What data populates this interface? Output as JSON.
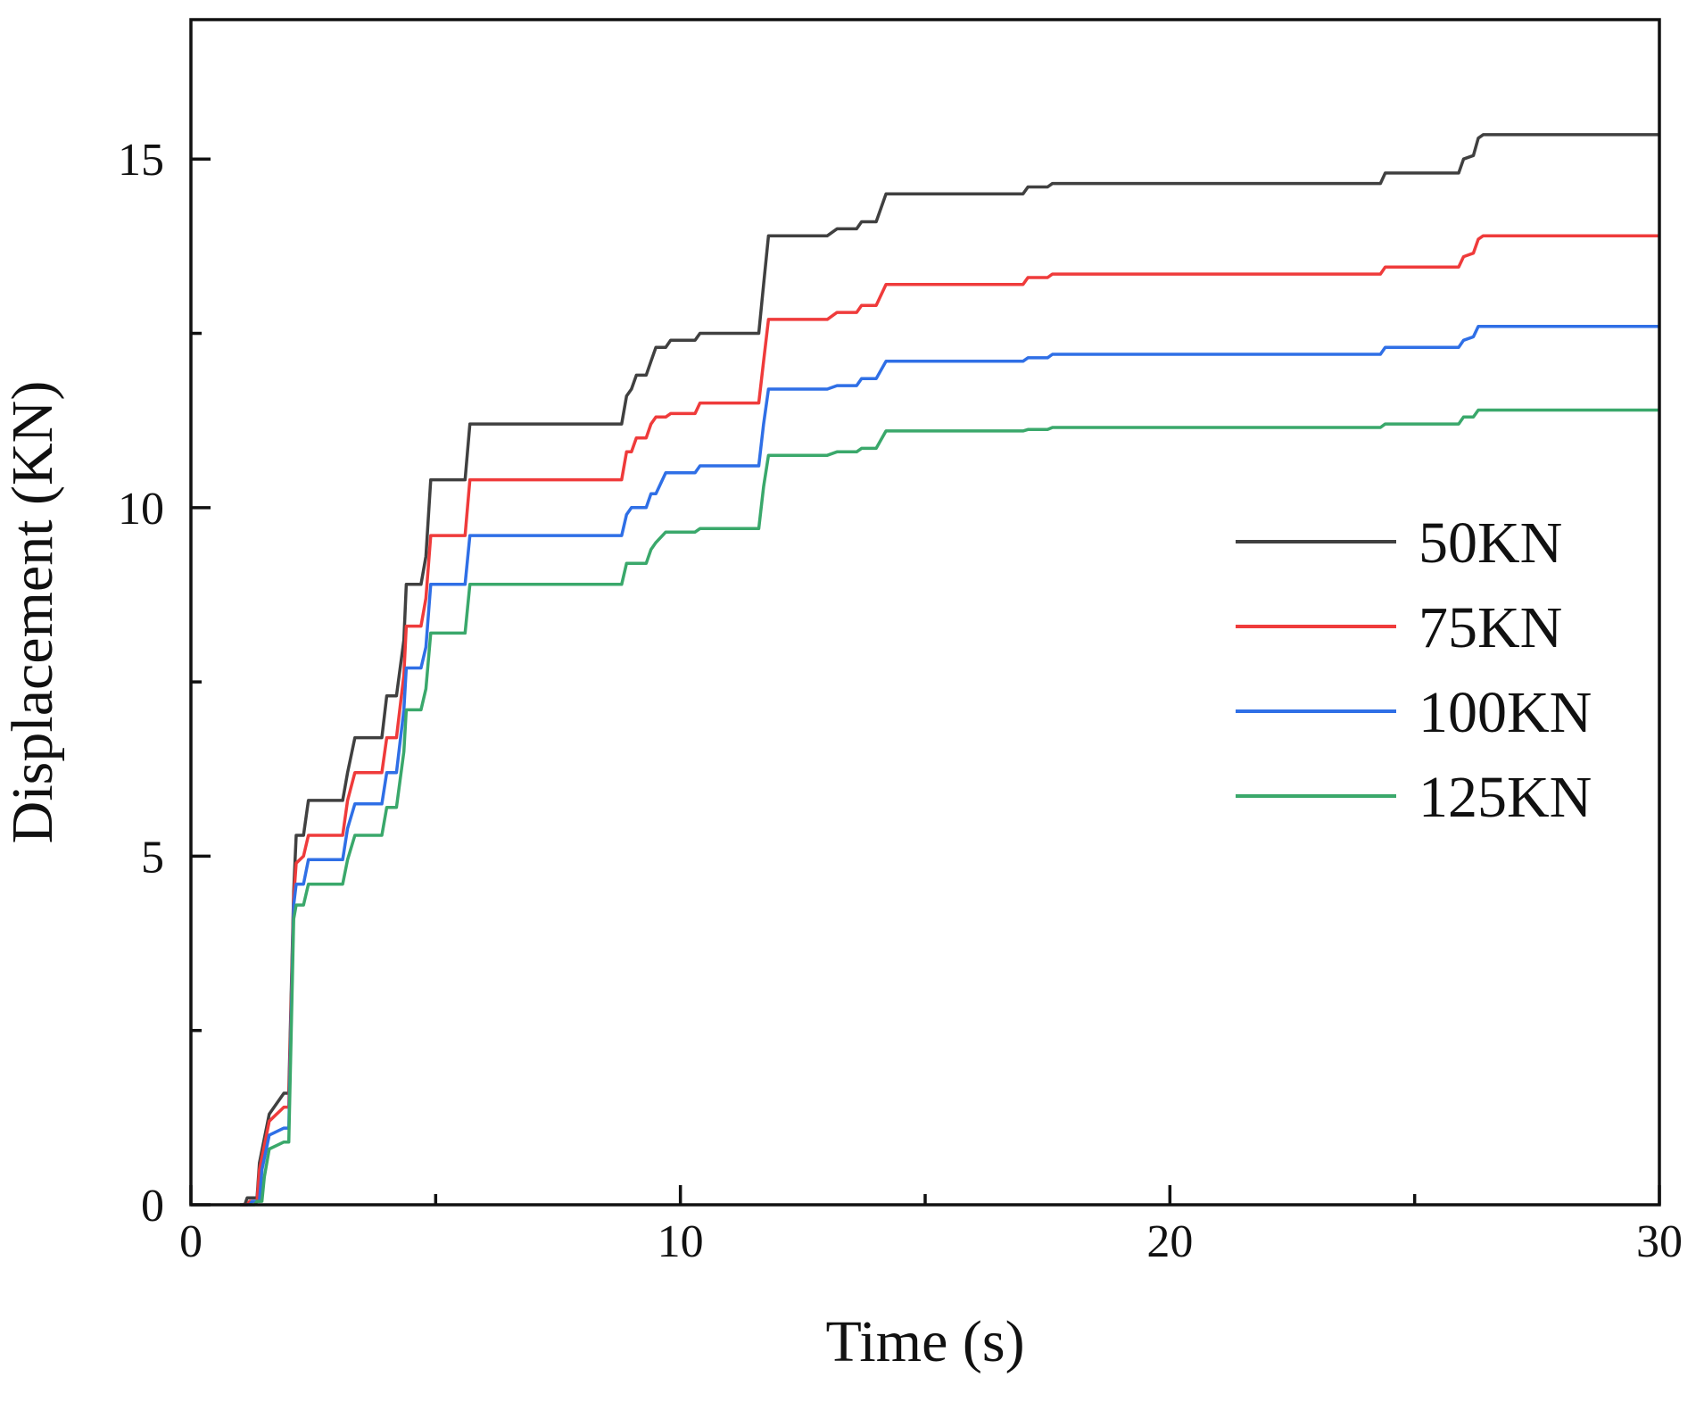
{
  "chart_data": {
    "type": "line",
    "title": "",
    "xlabel": "Time (s)",
    "ylabel": "Displacement (KN)",
    "xlim": [
      0,
      30
    ],
    "ylim": [
      0,
      17
    ],
    "xticks": [
      0,
      10,
      20,
      30
    ],
    "yticks": [
      0,
      5,
      10,
      15
    ],
    "x_minor_ticks": [
      5,
      15,
      25
    ],
    "y_minor_ticks": [
      2.5,
      7.5,
      12.5
    ],
    "grid": false,
    "legend_position": "right",
    "series": [
      {
        "name": "50KN",
        "color": "#404040",
        "points": [
          [
            1.0,
            0
          ],
          [
            1.1,
            0
          ],
          [
            1.15,
            0.1
          ],
          [
            1.35,
            0.1
          ],
          [
            1.4,
            0.6
          ],
          [
            1.6,
            1.3
          ],
          [
            1.9,
            1.6
          ],
          [
            2.0,
            1.6
          ],
          [
            2.1,
            4.5
          ],
          [
            2.15,
            5.3
          ],
          [
            2.3,
            5.3
          ],
          [
            2.4,
            5.8
          ],
          [
            3.1,
            5.8
          ],
          [
            3.2,
            6.2
          ],
          [
            3.35,
            6.7
          ],
          [
            3.9,
            6.7
          ],
          [
            4.0,
            7.3
          ],
          [
            4.2,
            7.3
          ],
          [
            4.35,
            8.1
          ],
          [
            4.4,
            8.9
          ],
          [
            4.7,
            8.9
          ],
          [
            4.8,
            9.3
          ],
          [
            4.9,
            10.4
          ],
          [
            5.6,
            10.4
          ],
          [
            5.7,
            11.2
          ],
          [
            8.8,
            11.2
          ],
          [
            8.9,
            11.6
          ],
          [
            9.0,
            11.7
          ],
          [
            9.1,
            11.9
          ],
          [
            9.3,
            11.9
          ],
          [
            9.4,
            12.1
          ],
          [
            9.5,
            12.3
          ],
          [
            9.7,
            12.3
          ],
          [
            9.8,
            12.4
          ],
          [
            10.3,
            12.4
          ],
          [
            10.4,
            12.5
          ],
          [
            11.6,
            12.5
          ],
          [
            11.7,
            13.2
          ],
          [
            11.8,
            13.9
          ],
          [
            13.0,
            13.9
          ],
          [
            13.2,
            14.0
          ],
          [
            13.6,
            14.0
          ],
          [
            13.7,
            14.1
          ],
          [
            14.0,
            14.1
          ],
          [
            14.2,
            14.5
          ],
          [
            17.0,
            14.5
          ],
          [
            17.1,
            14.6
          ],
          [
            17.5,
            14.6
          ],
          [
            17.6,
            14.65
          ],
          [
            24.3,
            14.65
          ],
          [
            24.4,
            14.8
          ],
          [
            25.9,
            14.8
          ],
          [
            26.0,
            15.0
          ],
          [
            26.2,
            15.05
          ],
          [
            26.3,
            15.3
          ],
          [
            26.4,
            15.35
          ],
          [
            30.0,
            15.35
          ]
        ]
      },
      {
        "name": "75KN",
        "color": "#ef3b3b",
        "points": [
          [
            1.05,
            0
          ],
          [
            1.15,
            0
          ],
          [
            1.2,
            0.05
          ],
          [
            1.35,
            0.05
          ],
          [
            1.4,
            0.5
          ],
          [
            1.6,
            1.2
          ],
          [
            1.9,
            1.4
          ],
          [
            2.0,
            1.4
          ],
          [
            2.1,
            4.4
          ],
          [
            2.15,
            4.9
          ],
          [
            2.3,
            5.0
          ],
          [
            2.4,
            5.3
          ],
          [
            3.1,
            5.3
          ],
          [
            3.2,
            5.8
          ],
          [
            3.35,
            6.2
          ],
          [
            3.9,
            6.2
          ],
          [
            4.0,
            6.7
          ],
          [
            4.2,
            6.7
          ],
          [
            4.35,
            7.6
          ],
          [
            4.4,
            8.3
          ],
          [
            4.7,
            8.3
          ],
          [
            4.8,
            8.7
          ],
          [
            4.9,
            9.6
          ],
          [
            5.6,
            9.6
          ],
          [
            5.7,
            10.4
          ],
          [
            8.8,
            10.4
          ],
          [
            8.9,
            10.8
          ],
          [
            9.0,
            10.8
          ],
          [
            9.1,
            11.0
          ],
          [
            9.3,
            11.0
          ],
          [
            9.4,
            11.2
          ],
          [
            9.5,
            11.3
          ],
          [
            9.7,
            11.3
          ],
          [
            9.8,
            11.35
          ],
          [
            10.3,
            11.35
          ],
          [
            10.4,
            11.5
          ],
          [
            11.6,
            11.5
          ],
          [
            11.7,
            12.1
          ],
          [
            11.8,
            12.7
          ],
          [
            13.0,
            12.7
          ],
          [
            13.2,
            12.8
          ],
          [
            13.6,
            12.8
          ],
          [
            13.7,
            12.9
          ],
          [
            14.0,
            12.9
          ],
          [
            14.2,
            13.2
          ],
          [
            17.0,
            13.2
          ],
          [
            17.1,
            13.3
          ],
          [
            17.5,
            13.3
          ],
          [
            17.6,
            13.35
          ],
          [
            24.3,
            13.35
          ],
          [
            24.4,
            13.45
          ],
          [
            25.9,
            13.45
          ],
          [
            26.0,
            13.6
          ],
          [
            26.2,
            13.65
          ],
          [
            26.3,
            13.85
          ],
          [
            26.4,
            13.9
          ],
          [
            30.0,
            13.9
          ]
        ]
      },
      {
        "name": "100KN",
        "color": "#2f6fe6",
        "points": [
          [
            1.1,
            0
          ],
          [
            1.2,
            0
          ],
          [
            1.25,
            0.05
          ],
          [
            1.4,
            0.05
          ],
          [
            1.45,
            0.5
          ],
          [
            1.6,
            1.0
          ],
          [
            1.9,
            1.1
          ],
          [
            2.0,
            1.1
          ],
          [
            2.1,
            4.3
          ],
          [
            2.15,
            4.6
          ],
          [
            2.3,
            4.6
          ],
          [
            2.4,
            4.95
          ],
          [
            3.1,
            4.95
          ],
          [
            3.2,
            5.4
          ],
          [
            3.35,
            5.75
          ],
          [
            3.9,
            5.75
          ],
          [
            4.0,
            6.2
          ],
          [
            4.2,
            6.2
          ],
          [
            4.35,
            7.1
          ],
          [
            4.4,
            7.7
          ],
          [
            4.7,
            7.7
          ],
          [
            4.8,
            8.0
          ],
          [
            4.9,
            8.9
          ],
          [
            5.6,
            8.9
          ],
          [
            5.7,
            9.6
          ],
          [
            8.8,
            9.6
          ],
          [
            8.9,
            9.9
          ],
          [
            9.0,
            10.0
          ],
          [
            9.1,
            10.0
          ],
          [
            9.3,
            10.0
          ],
          [
            9.4,
            10.2
          ],
          [
            9.5,
            10.2
          ],
          [
            9.7,
            10.5
          ],
          [
            9.8,
            10.5
          ],
          [
            10.3,
            10.5
          ],
          [
            10.4,
            10.6
          ],
          [
            11.6,
            10.6
          ],
          [
            11.7,
            11.2
          ],
          [
            11.8,
            11.7
          ],
          [
            13.0,
            11.7
          ],
          [
            13.2,
            11.75
          ],
          [
            13.6,
            11.75
          ],
          [
            13.7,
            11.85
          ],
          [
            14.0,
            11.85
          ],
          [
            14.2,
            12.1
          ],
          [
            17.0,
            12.1
          ],
          [
            17.1,
            12.15
          ],
          [
            17.5,
            12.15
          ],
          [
            17.6,
            12.2
          ],
          [
            24.3,
            12.2
          ],
          [
            24.4,
            12.3
          ],
          [
            25.9,
            12.3
          ],
          [
            26.0,
            12.4
          ],
          [
            26.2,
            12.45
          ],
          [
            26.3,
            12.6
          ],
          [
            26.4,
            12.6
          ],
          [
            30.0,
            12.6
          ]
        ]
      },
      {
        "name": "125KN",
        "color": "#3aa86b",
        "points": [
          [
            1.2,
            0
          ],
          [
            1.3,
            0
          ],
          [
            1.35,
            0.05
          ],
          [
            1.45,
            0.05
          ],
          [
            1.5,
            0.4
          ],
          [
            1.6,
            0.8
          ],
          [
            1.9,
            0.9
          ],
          [
            2.0,
            0.9
          ],
          [
            2.1,
            4.1
          ],
          [
            2.15,
            4.3
          ],
          [
            2.3,
            4.3
          ],
          [
            2.4,
            4.6
          ],
          [
            3.1,
            4.6
          ],
          [
            3.2,
            4.95
          ],
          [
            3.35,
            5.3
          ],
          [
            3.9,
            5.3
          ],
          [
            4.0,
            5.7
          ],
          [
            4.2,
            5.7
          ],
          [
            4.35,
            6.5
          ],
          [
            4.4,
            7.1
          ],
          [
            4.7,
            7.1
          ],
          [
            4.8,
            7.4
          ],
          [
            4.9,
            8.2
          ],
          [
            5.6,
            8.2
          ],
          [
            5.7,
            8.9
          ],
          [
            8.8,
            8.9
          ],
          [
            8.9,
            9.2
          ],
          [
            9.0,
            9.2
          ],
          [
            9.1,
            9.2
          ],
          [
            9.3,
            9.2
          ],
          [
            9.4,
            9.4
          ],
          [
            9.5,
            9.5
          ],
          [
            9.7,
            9.65
          ],
          [
            9.8,
            9.65
          ],
          [
            10.3,
            9.65
          ],
          [
            10.4,
            9.7
          ],
          [
            11.6,
            9.7
          ],
          [
            11.7,
            10.3
          ],
          [
            11.8,
            10.75
          ],
          [
            13.0,
            10.75
          ],
          [
            13.2,
            10.8
          ],
          [
            13.6,
            10.8
          ],
          [
            13.7,
            10.85
          ],
          [
            14.0,
            10.85
          ],
          [
            14.2,
            11.1
          ],
          [
            17.0,
            11.1
          ],
          [
            17.1,
            11.12
          ],
          [
            17.5,
            11.12
          ],
          [
            17.6,
            11.15
          ],
          [
            24.3,
            11.15
          ],
          [
            24.4,
            11.2
          ],
          [
            25.9,
            11.2
          ],
          [
            26.0,
            11.3
          ],
          [
            26.2,
            11.3
          ],
          [
            26.3,
            11.4
          ],
          [
            26.4,
            11.4
          ],
          [
            30.0,
            11.4
          ]
        ]
      }
    ]
  }
}
